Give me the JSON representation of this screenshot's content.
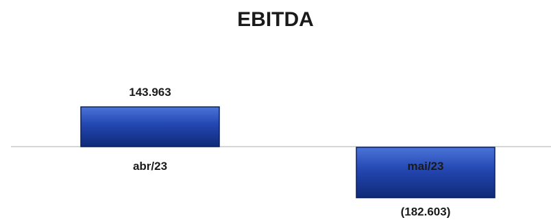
{
  "chart_data": {
    "type": "bar",
    "title": "EBITDA",
    "categories": [
      "abr/23",
      "mai/23"
    ],
    "values": [
      143963,
      -182603
    ],
    "data_labels": [
      "143.963",
      "(182.603)"
    ],
    "xlabel": "",
    "ylabel": "",
    "ylim": [
      -200000,
      200000
    ],
    "grid": false,
    "legend": "none",
    "colors": {
      "bar_top": "#4a74d8",
      "bar_mid": "#2346b0",
      "bar_bottom": "#0f2a78",
      "bar_edge": "#0b1f5c",
      "zero_line": "#c8c8c8",
      "text": "#1a1a1a"
    }
  }
}
